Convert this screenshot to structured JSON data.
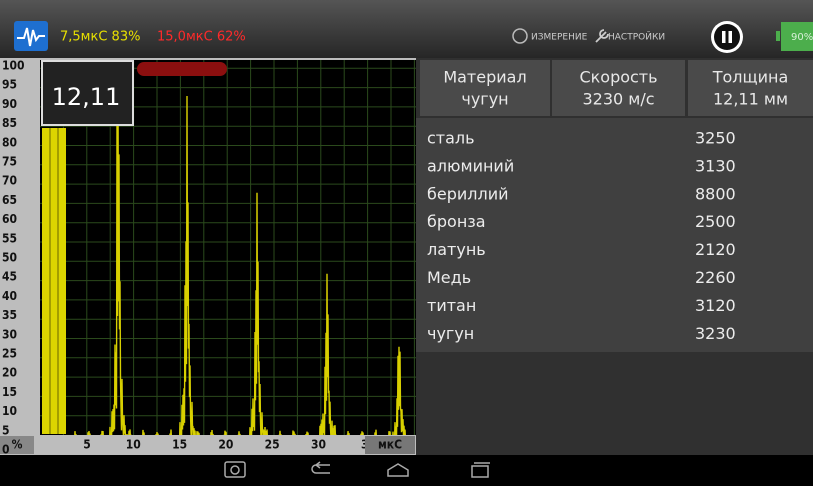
{
  "header": {
    "gate1": "7,5мкС 83%",
    "gate2": "15,0мкС 62%",
    "measure": "ИЗМЕРЕНИЕ",
    "settings": "НАСТРОЙКИ",
    "battery": "90%"
  },
  "scan": {
    "reading": "12,11",
    "y_labels": [
      "100",
      "95",
      "90",
      "85",
      "80",
      "75",
      "70",
      "65",
      "60",
      "55",
      "50",
      "45",
      "40",
      "35",
      "30",
      "25",
      "20",
      "15",
      "10",
      "5",
      "0"
    ],
    "x_labels": [
      "5",
      "10",
      "15",
      "20",
      "25",
      "30",
      "3"
    ],
    "x_unit": "мкС",
    "y_unit": "%"
  },
  "summary": [
    {
      "label": "Материал",
      "value": "чугун"
    },
    {
      "label": "Скорость",
      "value": "3230 м/с"
    },
    {
      "label": "Толщина",
      "value": "12,11 мм"
    }
  ],
  "materials": [
    {
      "name": "сталь",
      "speed": 3250
    },
    {
      "name": "алюминий",
      "speed": 3130
    },
    {
      "name": "бериллий",
      "speed": 8800
    },
    {
      "name": "бронза",
      "speed": 2500
    },
    {
      "name": "латунь",
      "speed": 2120
    },
    {
      "name": "Медь",
      "speed": 2260
    },
    {
      "name": "титан",
      "speed": 3120
    },
    {
      "name": "чугун",
      "speed": 3230
    }
  ]
}
